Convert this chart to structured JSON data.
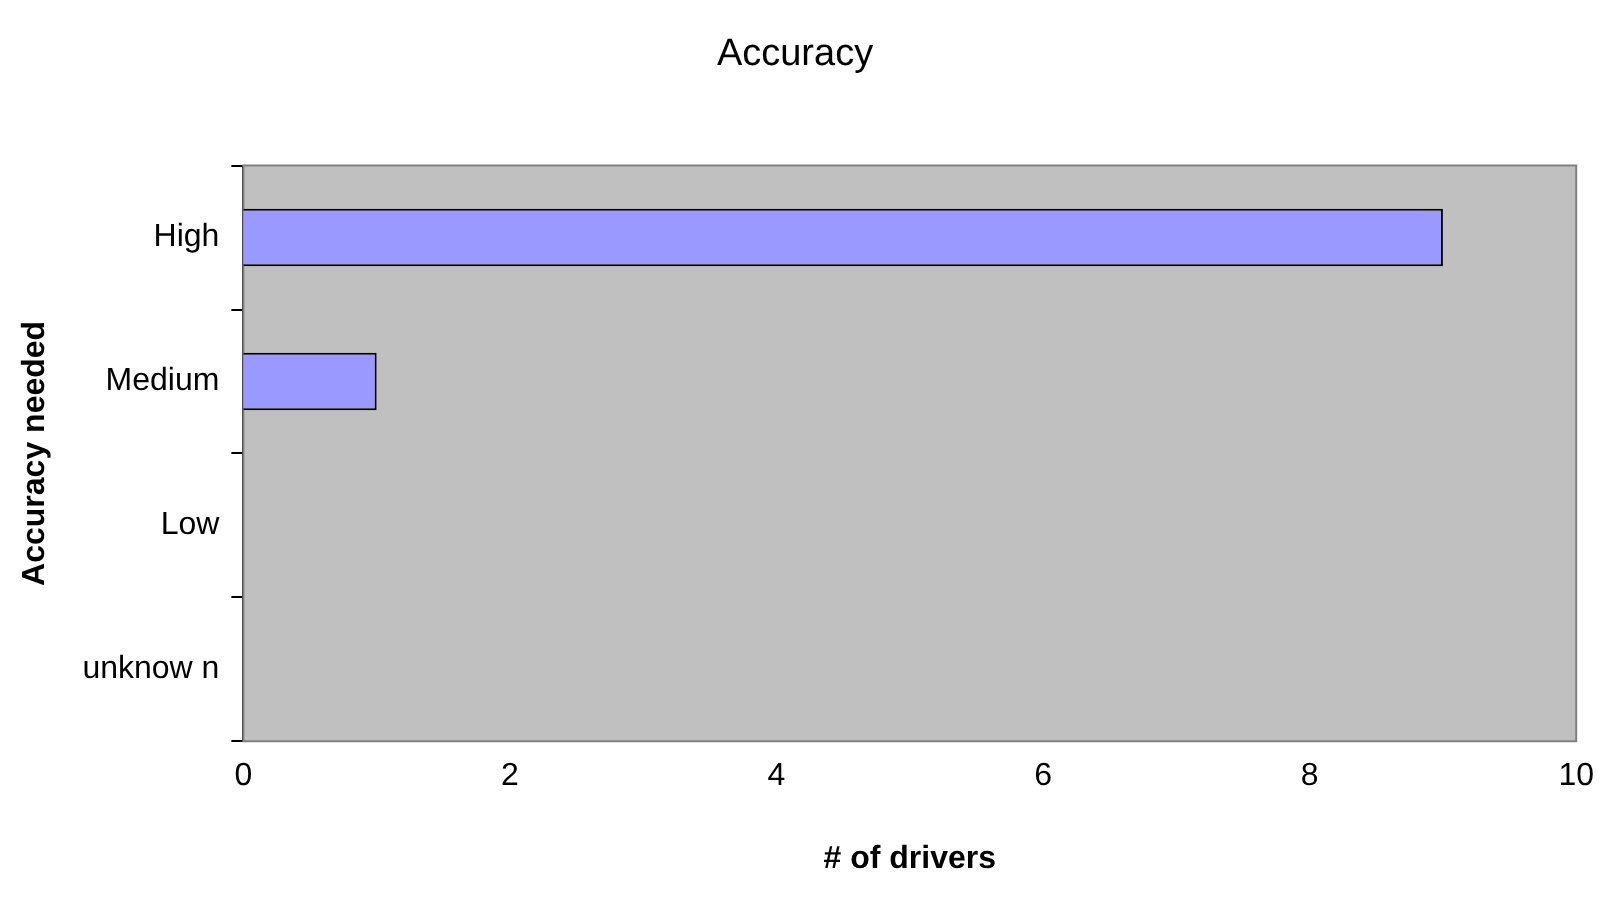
{
  "chart_data": {
    "type": "bar",
    "orientation": "horizontal",
    "title": "Accuracy",
    "xlabel": "# of drivers",
    "ylabel": "Accuracy needed",
    "categories": [
      "High",
      "Medium",
      "Low",
      "unknow n"
    ],
    "values": [
      9,
      1,
      0,
      0
    ],
    "color": "#9999ff",
    "xlim": [
      0,
      10
    ],
    "xticks": [
      0,
      2,
      4,
      6,
      8,
      10
    ],
    "grid": false,
    "legend": false
  }
}
